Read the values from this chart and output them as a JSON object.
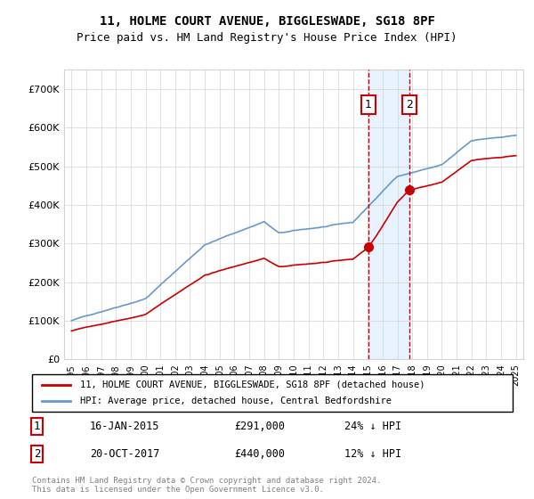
{
  "title": "11, HOLME COURT AVENUE, BIGGLESWADE, SG18 8PF",
  "subtitle": "Price paid vs. HM Land Registry's House Price Index (HPI)",
  "legend_line1": "11, HOLME COURT AVENUE, BIGGLESWADE, SG18 8PF (detached house)",
  "legend_line2": "HPI: Average price, detached house, Central Bedfordshire",
  "sale1_date": "16-JAN-2015",
  "sale1_price": 291000,
  "sale1_hpi_pct": "24% ↓ HPI",
  "sale2_date": "20-OCT-2017",
  "sale2_price": 440000,
  "sale2_hpi_pct": "12% ↓ HPI",
  "footnote": "Contains HM Land Registry data © Crown copyright and database right 2024.\nThis data is licensed under the Open Government Licence v3.0.",
  "property_color": "#cc0000",
  "hpi_color": "#6699cc",
  "shade_color": "#ddeeff",
  "vline_color": "#cc0000",
  "annotation_box_color": "#cc0000",
  "sale1_x": 2015.04,
  "sale2_x": 2017.8,
  "ylim_max": 750000,
  "xlim_min": 1994.5,
  "xlim_max": 2025.5
}
